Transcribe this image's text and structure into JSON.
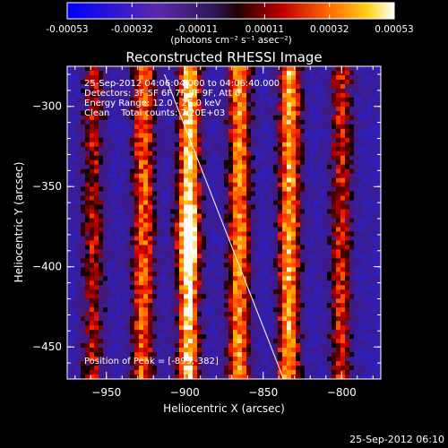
{
  "colorbar": {
    "tick_labels": [
      "-0.00053",
      "-0.00032",
      "-0.00011",
      "0.00011",
      "0.00032",
      "0.00053"
    ],
    "tick_values": [
      -0.00053,
      -0.00032,
      -0.00011,
      0.00011,
      0.00032,
      0.00053
    ],
    "range": [
      -0.00053,
      0.00053
    ],
    "units_label": "(photons cm⁻² s⁻¹ asec⁻²)"
  },
  "chart_data": {
    "type": "heatmap",
    "title": "Reconstructed RHESSI Image",
    "xlabel": "Heliocentric X (arcsec)",
    "ylabel": "Heliocentric Y (arcsec)",
    "xlim": [
      -975,
      -775
    ],
    "ylim": [
      -470,
      -275
    ],
    "x_ticks": [
      -950,
      -900,
      -850,
      -800
    ],
    "x_tick_labels": [
      "−950",
      "−900",
      "−850",
      "−800"
    ],
    "y_ticks": [
      -450,
      -400,
      -350,
      -300
    ],
    "y_tick_labels": [
      "−450",
      "−400",
      "−350",
      "−300"
    ],
    "colormap": "red-temperature (blue-purple negative, red-yellow-white positive)",
    "info_lines": [
      "25-Sep-2012 04:06:04.000 to 04:06:40.000",
      "Detectors: 3F 5F 6F 7F 8F 9F, Att 0",
      "Energy Range: 12.0 - 25.0 keV",
      "Clean    Total counts: 7.20E+03"
    ],
    "peak_label": "Position of Peak = [-899,-382]",
    "peak": [
      -899,
      -382
    ],
    "limb_line": [
      [
        -913,
        -280
      ],
      [
        -837,
        -470
      ]
    ],
    "stripes": [
      {
        "x_at_top": -958,
        "slope": -0.12,
        "intensity": 0.55
      },
      {
        "x_at_top": -926,
        "slope": -0.12,
        "intensity": 0.75
      },
      {
        "x_at_top": -897,
        "slope": -0.12,
        "intensity": 1.0
      },
      {
        "x_at_top": -865,
        "slope": -0.12,
        "intensity": 0.85
      },
      {
        "x_at_top": -833,
        "slope": -0.12,
        "intensity": 0.9
      },
      {
        "x_at_top": -800,
        "slope": -0.12,
        "intensity": 0.6
      }
    ]
  },
  "footer": {
    "timestamp": "25-Sep-2012 06:10"
  }
}
